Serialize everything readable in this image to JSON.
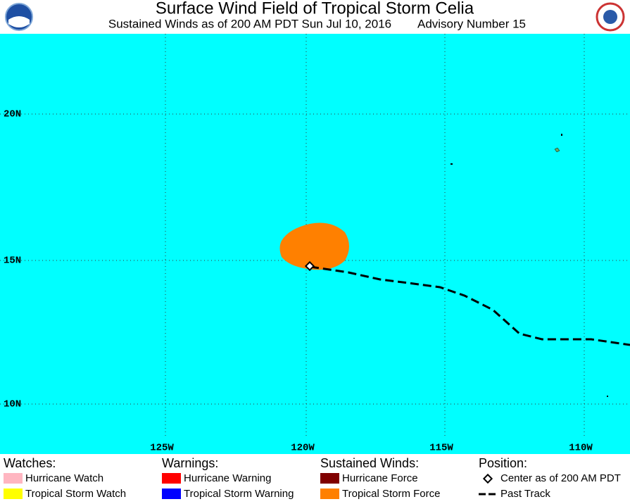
{
  "header": {
    "title": "Surface Wind Field of Tropical Storm Celia",
    "subtitle": "Sustained Winds as of 200 AM PDT Sun Jul 10, 2016",
    "advisory": "Advisory Number 15"
  },
  "map": {
    "lat_labels": [
      "20N",
      "15N",
      "10N"
    ],
    "lon_labels": [
      "125W",
      "120W",
      "115W",
      "110W"
    ]
  },
  "legend": {
    "watches": {
      "title": "Watches:",
      "items": [
        "Hurricane Watch",
        "Tropical Storm Watch"
      ]
    },
    "warnings": {
      "title": "Warnings:",
      "items": [
        "Hurricane Warning",
        "Tropical Storm Warning"
      ]
    },
    "winds": {
      "title": "Sustained Winds:",
      "items": [
        "Hurricane Force",
        "Tropical Storm Force"
      ]
    },
    "position": {
      "title": "Position:",
      "items": [
        "Center as of 200 AM PDT",
        "Past Track"
      ]
    }
  }
}
